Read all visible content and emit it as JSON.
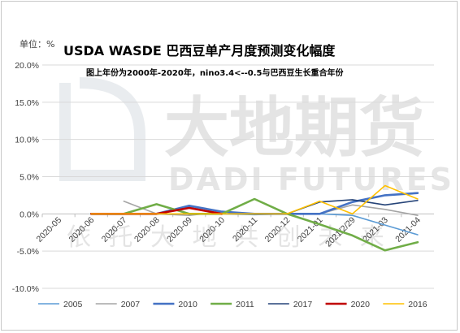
{
  "chart_data": {
    "type": "line",
    "title": "USDA WASDE 巴西豆单产月度预测变化幅度",
    "subtitle": "图上年份为2000年-2020年，nino3.4<--0.5与巴西豆生长重合年份",
    "unit_label": "单位：%",
    "watermark": {
      "cn": "大地期货",
      "en": "DADI FUTURES",
      "slogan": "依 托 大 地   共 创 未 来"
    },
    "xlabel": "",
    "ylabel": "",
    "ylim": [
      -10,
      20
    ],
    "yticks": [
      -10,
      -5,
      0,
      5,
      10,
      15,
      20
    ],
    "ytick_labels": [
      "-10.0%",
      "-5.0%",
      "0.0%",
      "5.0%",
      "10.0%",
      "15.0%",
      "20.0%"
    ],
    "categories": [
      "2020-05",
      "2020-06",
      "2020-07",
      "2020-08",
      "2020-09",
      "2020-10",
      "2020-11",
      "2020-12",
      "2021-01",
      "2021/2/29",
      "2021-03",
      "2021-04"
    ],
    "grid": "horizontal",
    "legend_position": "bottom",
    "series": [
      {
        "name": "2005",
        "color": "#5b9bd5",
        "width": 1.6,
        "values": [
          null,
          0,
          0,
          0,
          0.9,
          0,
          -0.1,
          0,
          0,
          -0.2,
          -1.5,
          -2.8
        ]
      },
      {
        "name": "2007",
        "color": "#a5a5a5",
        "width": 1.6,
        "values": [
          null,
          null,
          1.7,
          0,
          -0.2,
          0.3,
          0,
          0,
          0,
          1.2,
          0.6,
          -0.2
        ]
      },
      {
        "name": "2010",
        "color": "#4472c4",
        "width": 2.6,
        "values": [
          null,
          0,
          0,
          0,
          1.1,
          0.3,
          0,
          0,
          0,
          1.6,
          2.5,
          2.8
        ]
      },
      {
        "name": "2011",
        "color": "#70ad47",
        "width": 2.6,
        "values": [
          null,
          0,
          0,
          1.3,
          0,
          0,
          2.0,
          0,
          -1.4,
          -2.9,
          -4.9,
          -3.8
        ]
      },
      {
        "name": "2017",
        "color": "#264478",
        "width": 1.6,
        "values": [
          null,
          0,
          0,
          0,
          0,
          0,
          0,
          0,
          1.6,
          1.9,
          1.2,
          1.8
        ]
      },
      {
        "name": "2020",
        "color": "#c00000",
        "width": 2.6,
        "values": [
          null,
          0,
          0,
          0,
          0.8,
          0,
          null,
          null,
          null,
          null,
          null,
          null
        ]
      },
      {
        "name": "2016",
        "color": "#ffc000",
        "width": 1.6,
        "values": [
          null,
          0,
          0,
          0,
          0,
          0,
          0,
          0,
          1.7,
          0,
          3.8,
          2.0
        ]
      }
    ],
    "legend_order": [
      "2005",
      "2007",
      "2010",
      "2011",
      "2017",
      "2020",
      "2016"
    ]
  }
}
